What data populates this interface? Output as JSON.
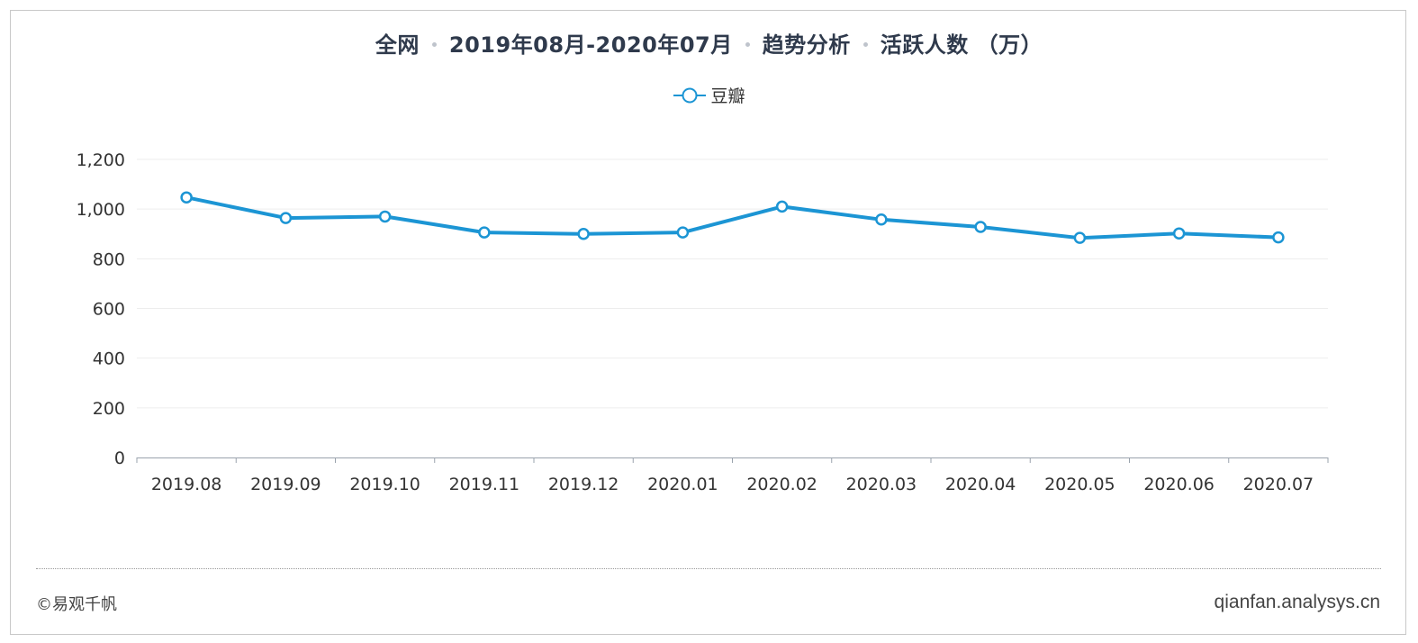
{
  "title": {
    "parts": [
      "全网",
      "2019年08月-2020年07月",
      "趋势分析",
      "活跃人数 （万）"
    ]
  },
  "legend": {
    "label": "豆瓣",
    "marker_icon": "circle-line-marker-icon"
  },
  "colors": {
    "series": "#1c95d4",
    "title": "#2f3a4c",
    "grid": "#ededed"
  },
  "footer": {
    "copyright": "©易观千帆",
    "site": "qianfan.analysys.cn"
  },
  "chart_data": {
    "type": "line",
    "title": "全网 · 2019年08月-2020年07月 · 趋势分析 · 活跃人数 （万）",
    "xlabel": "",
    "ylabel": "",
    "categories": [
      "2019.08",
      "2019.09",
      "2019.10",
      "2019.11",
      "2019.12",
      "2020.01",
      "2020.02",
      "2020.03",
      "2020.04",
      "2020.05",
      "2020.06",
      "2020.07"
    ],
    "series": [
      {
        "name": "豆瓣",
        "values": [
          1047,
          964,
          970,
          906,
          900,
          906,
          1010,
          958,
          928,
          884,
          902,
          886
        ]
      }
    ],
    "ylim": [
      0,
      1200
    ],
    "yticks": [
      0,
      200,
      400,
      600,
      800,
      1000,
      1200
    ],
    "ytick_labels": [
      "0",
      "200",
      "400",
      "600",
      "800",
      "1,000",
      "1,200"
    ],
    "grid": true,
    "legend_position": "top-center"
  }
}
